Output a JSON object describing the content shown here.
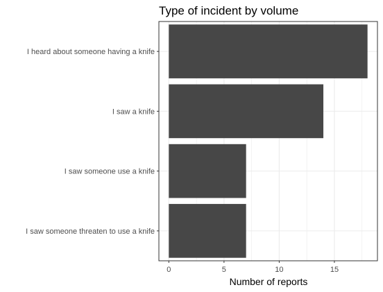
{
  "chart_data": {
    "type": "bar",
    "orientation": "horizontal",
    "title": "Type of incident by volume",
    "xlabel": "Number of reports",
    "ylabel": "",
    "categories": [
      "I heard about someone having a knife",
      "I saw a knife",
      "I saw someone use a knife",
      "I saw someone threaten to use a knife"
    ],
    "values": [
      18,
      14,
      7,
      7
    ],
    "xlim": [
      -0.9,
      18.9
    ],
    "xticks": [
      0,
      5,
      10,
      15
    ],
    "grid": true,
    "legend": "none",
    "colors": {
      "bar": "#474747",
      "grid": "#ebebeb",
      "panel_border": "#333333",
      "background": "#ffffff"
    }
  }
}
